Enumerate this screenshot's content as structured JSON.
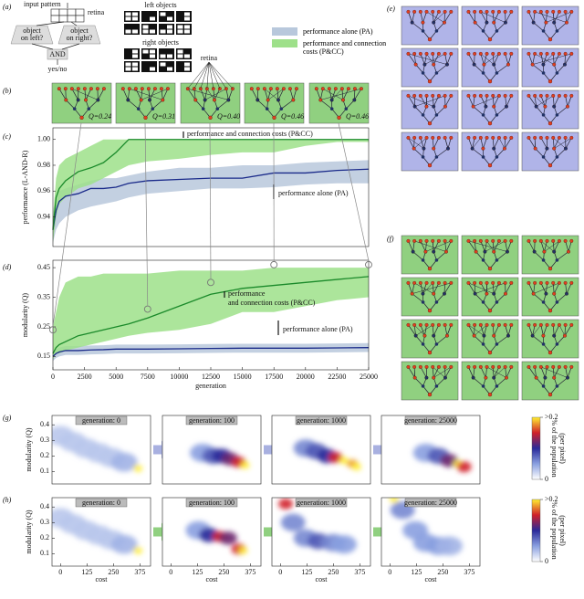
{
  "panel_labels": [
    "(a)",
    "(b)",
    "(c)",
    "(d)",
    "(e)",
    "(f)",
    "(g)",
    "(h)"
  ],
  "schematic": {
    "input_pattern": "input pattern",
    "retina": "retina",
    "question_left": [
      "object",
      "on left?"
    ],
    "question_right": [
      "object",
      "on right?"
    ],
    "and": "AND",
    "output": "yes/no",
    "left_objects": "left objects",
    "right_objects": "right objects"
  },
  "retina_label": "retina",
  "networks_b": [
    "Q=0.24",
    "Q=0.31",
    "Q=0.40",
    "Q=0.46",
    "Q=0.46"
  ],
  "colorbar": {
    "lim": [
      0,
      0.2
    ],
    "ticks": [
      {
        "value": 0.2,
        "label": ">0.2"
      },
      0
    ],
    "label": [
      "% of the population",
      "(per pixel)"
    ]
  },
  "chart_data": [
    {
      "type": "line",
      "ylabel": "performance (L-AND-R)",
      "xlim": [
        0,
        25000
      ],
      "ylim": [
        0.917,
        1.009
      ],
      "yticks": [
        0.94,
        0.96,
        0.98,
        {
          "value": 1,
          "label": "1.00"
        }
      ],
      "x": [
        0,
        250,
        500,
        1000,
        2000,
        3000,
        4000,
        5000,
        6000,
        7500,
        10000,
        12500,
        15000,
        17500,
        20000,
        22500,
        25000
      ],
      "series": [
        {
          "name": "performance alone (PA)",
          "color": "#1a2a8a",
          "band_color": "#b8c8dc",
          "values": [
            0.93,
            0.945,
            0.952,
            0.956,
            0.958,
            0.962,
            0.962,
            0.963,
            0.966,
            0.968,
            0.969,
            0.97,
            0.97,
            0.974,
            0.974,
            0.976,
            0.977
          ],
          "upper": [
            0.94,
            0.955,
            0.96,
            0.962,
            0.965,
            0.968,
            0.97,
            0.97,
            0.972,
            0.975,
            0.978,
            0.978,
            0.98,
            0.98,
            0.982,
            0.983,
            0.984
          ],
          "lower": [
            0.92,
            0.93,
            0.935,
            0.94,
            0.945,
            0.948,
            0.95,
            0.952,
            0.955,
            0.958,
            0.96,
            0.962,
            0.962,
            0.963,
            0.965,
            0.966,
            0.966
          ]
        },
        {
          "name": "performance and connection costs (P&CC)",
          "color": "#1a8a2a",
          "band_color": "#9ee08a",
          "values": [
            0.93,
            0.955,
            0.962,
            0.968,
            0.975,
            0.978,
            0.982,
            0.99,
            1.0,
            1.0,
            1.0,
            1.0,
            1.0,
            1.0,
            1.0,
            1.0,
            1.0
          ],
          "upper": [
            0.94,
            0.97,
            0.98,
            0.985,
            0.99,
            0.995,
            1.0,
            1.0,
            1.0,
            1.0,
            1.0,
            1.0,
            1.0,
            1.0,
            1.0,
            1.0,
            1.0
          ],
          "lower": [
            0.92,
            0.94,
            0.95,
            0.955,
            0.962,
            0.965,
            0.97,
            0.975,
            0.98,
            0.983,
            0.985,
            0.988,
            0.99,
            0.99,
            0.995,
            0.998,
            0.998
          ]
        }
      ],
      "annotations": [
        [
          "performance and connection costs (P&CC)"
        ],
        [
          "performance alone (PA)"
        ]
      ]
    },
    {
      "type": "line",
      "ylabel": "modularity (Q)",
      "xlabel": "generation",
      "xlim": [
        0,
        25000
      ],
      "ylim": [
        0.105,
        0.475
      ],
      "yticks": [
        0.15,
        0.25,
        0.35,
        0.45
      ],
      "xticks": [
        0,
        2500,
        5000,
        7500,
        10000,
        12500,
        15000,
        17500,
        20000,
        22500,
        25000
      ],
      "x": [
        0,
        250,
        500,
        1000,
        2000,
        3000,
        4000,
        5000,
        6000,
        7500,
        10000,
        12500,
        15000,
        17500,
        20000,
        22500,
        25000
      ],
      "series": [
        {
          "name": "performance alone (PA)",
          "color": "#1a2a8a",
          "band_color": "#b8c8dc",
          "values": [
            0.15,
            0.16,
            0.165,
            0.17,
            0.17,
            0.172,
            0.173,
            0.175,
            0.175,
            0.175,
            0.176,
            0.177,
            0.178,
            0.178,
            0.178,
            0.179,
            0.18
          ],
          "upper": [
            0.165,
            0.175,
            0.18,
            0.185,
            0.185,
            0.187,
            0.188,
            0.19,
            0.19,
            0.19,
            0.191,
            0.192,
            0.193,
            0.193,
            0.193,
            0.194,
            0.195
          ],
          "lower": [
            0.135,
            0.145,
            0.15,
            0.155,
            0.155,
            0.157,
            0.158,
            0.16,
            0.16,
            0.16,
            0.161,
            0.162,
            0.163,
            0.163,
            0.163,
            0.164,
            0.165
          ]
        },
        {
          "name": "performance and connection costs (P&CC)",
          "color": "#1a8a2a",
          "band_color": "#9ee08a",
          "values": [
            0.16,
            0.18,
            0.19,
            0.2,
            0.22,
            0.23,
            0.24,
            0.25,
            0.26,
            0.28,
            0.32,
            0.36,
            0.38,
            0.39,
            0.4,
            0.41,
            0.42
          ],
          "upper": [
            0.25,
            0.3,
            0.35,
            0.4,
            0.42,
            0.42,
            0.43,
            0.43,
            0.43,
            0.43,
            0.44,
            0.44,
            0.44,
            0.45,
            0.45,
            0.45,
            0.45
          ],
          "lower": [
            0.14,
            0.16,
            0.16,
            0.17,
            0.18,
            0.19,
            0.2,
            0.21,
            0.22,
            0.23,
            0.24,
            0.26,
            0.3,
            0.3,
            0.32,
            0.34,
            0.35
          ]
        }
      ],
      "highlights": {
        "x": [
          0,
          7500,
          12500,
          17500,
          25000
        ],
        "values": [
          0.24,
          0.31,
          0.4,
          0.46,
          0.46
        ]
      },
      "annotations": [
        [
          "performance",
          "and connection costs (P&CC)"
        ],
        [
          "performance alone (PA)"
        ]
      ]
    },
    {
      "type": "density",
      "title": "generation: 0",
      "ylabel": "modularity (Q)",
      "xlim": [
        -40,
        425
      ],
      "ylim": [
        0.02,
        0.46
      ],
      "yticks": [
        0.1,
        0.2,
        0.3,
        0.4
      ],
      "x": [
        0,
        60,
        120,
        180,
        240,
        300,
        365
      ],
      "values": [
        0.33,
        0.29,
        0.25,
        0.22,
        0.19,
        0.16,
        0.12
      ],
      "intensity": [
        0.03,
        0.03,
        0.03,
        0.03,
        0.03,
        0.04,
        0.2
      ]
    },
    {
      "type": "density",
      "title": "generation: 100",
      "xlim": [
        -40,
        425
      ],
      "ylim": [
        0.02,
        0.46
      ],
      "x": [
        150,
        200,
        240,
        280,
        320,
        350
      ],
      "values": [
        0.22,
        0.2,
        0.2,
        0.18,
        0.16,
        0.14
      ],
      "intensity": [
        0.05,
        0.08,
        0.1,
        0.12,
        0.15,
        0.2
      ]
    },
    {
      "type": "density",
      "title": "generation: 1000",
      "xlim": [
        -40,
        425
      ],
      "ylim": [
        0.02,
        0.46
      ],
      "x": [
        120,
        170,
        220,
        260,
        300,
        340,
        360
      ],
      "values": [
        0.25,
        0.23,
        0.2,
        0.19,
        0.17,
        0.15,
        0.13
      ],
      "intensity": [
        0.06,
        0.08,
        0.1,
        0.15,
        0.2,
        0.18,
        0.2
      ]
    },
    {
      "type": "density",
      "title": "generation: 25000",
      "xlim": [
        -40,
        425
      ],
      "ylim": [
        0.02,
        0.46
      ],
      "x": [
        170,
        230,
        280,
        320,
        350
      ],
      "values": [
        0.22,
        0.2,
        0.17,
        0.15,
        0.13
      ],
      "intensity": [
        0.05,
        0.08,
        0.12,
        0.2,
        0.15
      ]
    },
    {
      "type": "density",
      "title": "generation: 0",
      "ylabel": "modularity (Q)",
      "xlabel": "cost",
      "xlim": [
        -40,
        425
      ],
      "ylim": [
        0.02,
        0.46
      ],
      "yticks": [
        0.1,
        0.2,
        0.3,
        0.4
      ],
      "xticks": [
        0,
        125,
        250,
        375
      ],
      "x": [
        0,
        60,
        120,
        180,
        240,
        300,
        365
      ],
      "values": [
        0.33,
        0.29,
        0.25,
        0.22,
        0.19,
        0.16,
        0.12
      ],
      "intensity": [
        0.03,
        0.03,
        0.03,
        0.03,
        0.03,
        0.04,
        0.2
      ]
    },
    {
      "type": "density",
      "title": "generation: 100",
      "xlabel": "cost",
      "xlim": [
        -40,
        425
      ],
      "ylim": [
        0.02,
        0.46
      ],
      "xticks": [
        0,
        125,
        250,
        375
      ],
      "x": [
        130,
        180,
        230,
        270,
        320,
        340
      ],
      "values": [
        0.25,
        0.22,
        0.21,
        0.2,
        0.13,
        0.12
      ],
      "intensity": [
        0.05,
        0.1,
        0.15,
        0.12,
        0.15,
        0.2
      ]
    },
    {
      "type": "density",
      "title": "generation: 1000",
      "xlabel": "cost",
      "xlim": [
        -40,
        425
      ],
      "ylim": [
        0.02,
        0.46
      ],
      "xticks": [
        0,
        125,
        250,
        375
      ],
      "x": [
        25,
        60,
        120,
        180,
        250,
        300
      ],
      "values": [
        0.42,
        0.3,
        0.2,
        0.18,
        0.17,
        0.16
      ],
      "intensity": [
        0.15,
        0.06,
        0.06,
        0.08,
        0.06,
        0.05
      ]
    },
    {
      "type": "density",
      "title": "generation: 25000",
      "xlabel": "cost",
      "xlim": [
        -40,
        425
      ],
      "ylim": [
        0.02,
        0.46
      ],
      "xticks": [
        0,
        125,
        250,
        375
      ],
      "x": [
        20,
        60,
        120,
        170,
        230,
        280
      ],
      "values": [
        0.45,
        0.38,
        0.25,
        0.17,
        0.15,
        0.15
      ],
      "intensity": [
        0.2,
        0.06,
        0.05,
        0.05,
        0.05,
        0.04
      ]
    }
  ]
}
